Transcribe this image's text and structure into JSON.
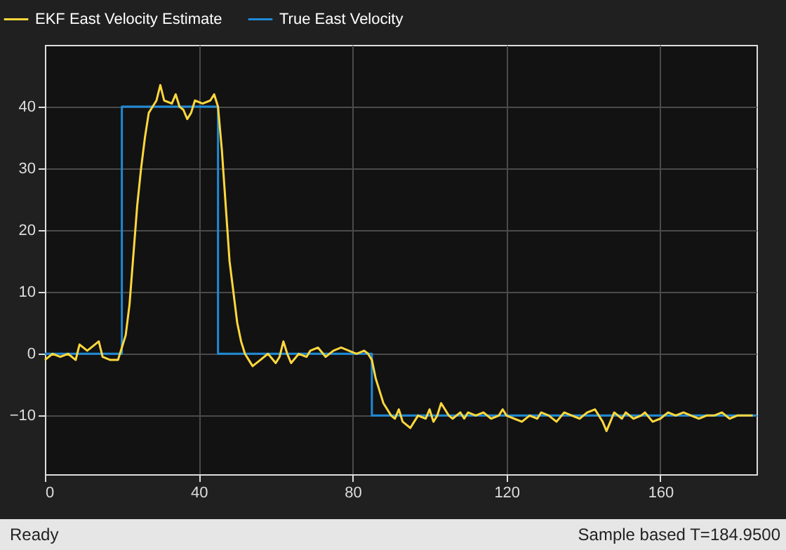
{
  "chart_data": {
    "type": "line",
    "xlim": [
      0,
      185
    ],
    "ylim": [
      -19.5,
      50
    ],
    "xticks": [
      0,
      40,
      80,
      120,
      160
    ],
    "yticks": [
      -10,
      0,
      10,
      20,
      30,
      40
    ],
    "grid": true,
    "legend": "top left",
    "annotations": [
      "Ready",
      "Sample based    T=184.9500"
    ],
    "series": [
      {
        "name": "EKF East Velocity Estimate",
        "color": "#ffd83d",
        "x": [
          0,
          2,
          4,
          6,
          8,
          9,
          11,
          13,
          14,
          15,
          17,
          19,
          20,
          21,
          22,
          23,
          24,
          25,
          26,
          27,
          28,
          29,
          30,
          31,
          33,
          34,
          35,
          36,
          37,
          38,
          39,
          41,
          43,
          44,
          45,
          46,
          47,
          48,
          49,
          50,
          51,
          52,
          53,
          54,
          56,
          58,
          60,
          61,
          62,
          63,
          64,
          66,
          68,
          69,
          71,
          73,
          75,
          77,
          79,
          81,
          83,
          84,
          85,
          86,
          87,
          88,
          89,
          90,
          91,
          92,
          93,
          94,
          95,
          96,
          97,
          99,
          100,
          101,
          102,
          103,
          104,
          105,
          106,
          108,
          109,
          110,
          112,
          114,
          116,
          118,
          119,
          120,
          122,
          124,
          126,
          128,
          129,
          131,
          133,
          135,
          137,
          139,
          141,
          143,
          145,
          146,
          148,
          150,
          151,
          153,
          155,
          156,
          158,
          160,
          162,
          164,
          166,
          168,
          170,
          172,
          174,
          176,
          178,
          180,
          182,
          184
        ],
        "values": [
          -1,
          0,
          -0.5,
          0,
          -1,
          1.5,
          0.5,
          1.5,
          2,
          -0.5,
          -1,
          -1,
          1,
          3,
          8,
          16,
          24,
          30,
          35,
          39,
          40,
          41,
          43.5,
          41,
          40.5,
          42,
          40,
          39.5,
          38,
          39,
          41,
          40.5,
          41,
          42,
          40,
          33,
          24,
          15,
          10,
          5,
          2,
          0,
          -1,
          -2,
          -1,
          0,
          -1.5,
          -0.5,
          2,
          0,
          -1.5,
          0,
          -0.5,
          0.5,
          1,
          -0.5,
          0.5,
          1,
          0.5,
          0,
          0.5,
          0,
          -1,
          -4,
          -6,
          -8,
          -9,
          -10,
          -10.5,
          -9,
          -11,
          -11.5,
          -12,
          -11,
          -10,
          -10.5,
          -9,
          -11,
          -10,
          -8,
          -9,
          -10,
          -10.5,
          -9.5,
          -10.5,
          -9.5,
          -10,
          -9.5,
          -10.5,
          -10,
          -9,
          -10,
          -10.5,
          -11,
          -10,
          -10.5,
          -9.5,
          -10,
          -11,
          -9.5,
          -10,
          -10.5,
          -9.5,
          -9,
          -11,
          -12.5,
          -9.5,
          -10.5,
          -9.5,
          -10.5,
          -10,
          -9.5,
          -11,
          -10.5,
          -9.5,
          -10,
          -9.5,
          -10,
          -10.5,
          -10,
          -10,
          -9.5,
          -10.5,
          -10,
          -10,
          -10
        ]
      },
      {
        "name": "True East Velocity",
        "color": "#1f8ad6",
        "x": [
          0,
          20,
          20,
          45,
          45,
          85,
          85,
          185
        ],
        "values": [
          0,
          0,
          40,
          40,
          0,
          0,
          -10,
          -10
        ]
      }
    ]
  }
}
